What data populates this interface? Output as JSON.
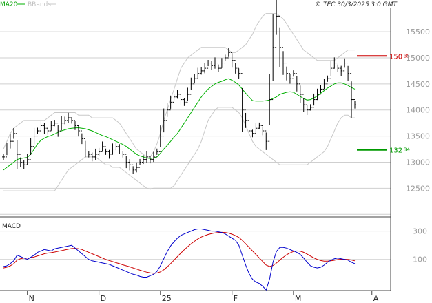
{
  "header": {
    "legend_ma": "MA20",
    "legend_bbands": "BBands",
    "source": "© TEC 30/3/2025 3:0 GMT"
  },
  "macd_label": "MACD",
  "colors": {
    "price": "#000000",
    "ma20": "#00b000",
    "bbands": "#c8c8c8",
    "macd": "#0000cc",
    "signal": "#cc0000",
    "resistance": "#cc0000",
    "support": "#009900",
    "grid": "#cfcfcf"
  },
  "chart_data": [
    {
      "type": "candlestick",
      "title": "",
      "ylim": [
        11950,
        15950
      ],
      "y_ticks": [
        12500,
        13000,
        13500,
        14000,
        14500,
        15000,
        15500
      ],
      "y_tick_labels": [
        "12500",
        "13000",
        "13500",
        "14000",
        "14500",
        "15000",
        "15500"
      ],
      "x_tick_labels": [
        "N",
        "D",
        "25",
        "F",
        "M",
        "A"
      ],
      "x_tick_index": [
        7,
        28,
        46,
        67,
        85,
        108
      ],
      "levels": [
        {
          "name": "resistance",
          "value": 15035,
          "int": "150",
          "dec": "35"
        },
        {
          "name": "support",
          "value": 13234,
          "int": "132",
          "dec": "34"
        }
      ],
      "price": [
        13100,
        13250,
        13400,
        13550,
        13150,
        13000,
        12950,
        13050,
        13300,
        13500,
        13600,
        13700,
        13650,
        13600,
        13700,
        13750,
        13600,
        13750,
        13800,
        13850,
        13800,
        13700,
        13600,
        13450,
        13250,
        13150,
        13100,
        13150,
        13200,
        13300,
        13200,
        13150,
        13250,
        13300,
        13250,
        13150,
        13000,
        12950,
        12850,
        12900,
        13000,
        13050,
        13100,
        13050,
        13100,
        13200,
        13500,
        13800,
        14000,
        14150,
        14250,
        14300,
        14200,
        14150,
        14300,
        14500,
        14600,
        14700,
        14750,
        14800,
        14900,
        14850,
        14900,
        14800,
        14900,
        15000,
        15100,
        14950,
        14800,
        14700,
        14000,
        13800,
        13600,
        13550,
        13650,
        13700,
        13600,
        13400,
        14200,
        15200,
        15800,
        15200,
        14900,
        14700,
        14600,
        14700,
        14500,
        14300,
        14100,
        14000,
        14050,
        14200,
        14300,
        14400,
        14500,
        14600,
        14800,
        14900,
        14800,
        14750,
        14900,
        14700,
        14200,
        14100
      ],
      "ma20": [
        12850,
        12900,
        12950,
        13000,
        13050,
        13070,
        13080,
        13090,
        13150,
        13250,
        13350,
        13420,
        13460,
        13490,
        13510,
        13540,
        13570,
        13600,
        13620,
        13640,
        13650,
        13655,
        13660,
        13650,
        13640,
        13620,
        13600,
        13570,
        13540,
        13510,
        13490,
        13460,
        13430,
        13400,
        13370,
        13340,
        13300,
        13250,
        13200,
        13150,
        13120,
        13100,
        13080,
        13070,
        13080,
        13100,
        13170,
        13250,
        13320,
        13400,
        13480,
        13550,
        13650,
        13750,
        13850,
        13950,
        14050,
        14150,
        14250,
        14330,
        14400,
        14450,
        14500,
        14530,
        14550,
        14580,
        14600,
        14570,
        14530,
        14480,
        14400,
        14320,
        14250,
        14180,
        14170,
        14170,
        14170,
        14180,
        14190,
        14220,
        14250,
        14300,
        14320,
        14340,
        14350,
        14340,
        14300,
        14260,
        14220,
        14190,
        14200,
        14230,
        14270,
        14320,
        14370,
        14420,
        14460,
        14500,
        14520,
        14520,
        14500,
        14470,
        14430,
        14400
      ],
      "bb_upper": [
        13250,
        13400,
        13550,
        13650,
        13700,
        13750,
        13800,
        13800,
        13800,
        13800,
        13800,
        13800,
        13800,
        13850,
        13900,
        13950,
        13950,
        13950,
        13950,
        13950,
        13950,
        13950,
        13900,
        13900,
        13900,
        13900,
        13850,
        13850,
        13850,
        13850,
        13850,
        13850,
        13850,
        13800,
        13750,
        13650,
        13550,
        13450,
        13350,
        13250,
        13200,
        13150,
        13100,
        13100,
        13200,
        13350,
        13550,
        13800,
        14000,
        14200,
        14400,
        14600,
        14800,
        14900,
        15000,
        15050,
        15100,
        15150,
        15200,
        15200,
        15200,
        15200,
        15200,
        15200,
        15200,
        15200,
        15150,
        15100,
        15100,
        15150,
        15200,
        15250,
        15350,
        15450,
        15600,
        15700,
        15800,
        15850,
        15850,
        15850,
        15850,
        15800,
        15750,
        15650,
        15550,
        15450,
        15350,
        15250,
        15150,
        15100,
        15050,
        15000,
        14950,
        14950,
        14950,
        14950,
        14950,
        14950,
        15000,
        15050,
        15100,
        15150,
        15150,
        15150
      ],
      "bb_lower": [
        12450,
        12450,
        12450,
        12450,
        12450,
        12450,
        12450,
        12450,
        12450,
        12450,
        12450,
        12450,
        12450,
        12450,
        12450,
        12450,
        12550,
        12650,
        12750,
        12850,
        12900,
        12950,
        13000,
        13050,
        13100,
        13100,
        13100,
        13100,
        13050,
        13000,
        12950,
        12950,
        12900,
        12900,
        12900,
        12850,
        12800,
        12750,
        12700,
        12650,
        12600,
        12550,
        12500,
        12480,
        12500,
        12500,
        12500,
        12500,
        12500,
        12500,
        12550,
        12650,
        12750,
        12850,
        12950,
        13050,
        13150,
        13250,
        13400,
        13600,
        13800,
        13900,
        14000,
        14050,
        14050,
        14050,
        14050,
        14050,
        14000,
        13950,
        13850,
        13700,
        13550,
        13400,
        13300,
        13250,
        13200,
        13150,
        13100,
        13050,
        13000,
        12950,
        12950,
        12950,
        12950,
        12950,
        12950,
        12950,
        12950,
        12950,
        13000,
        13050,
        13100,
        13150,
        13200,
        13300,
        13450,
        13600,
        13750,
        13850,
        13900,
        13900,
        13850,
        13850
      ]
    },
    {
      "type": "line",
      "title": "MACD",
      "ylim": [
        -120,
        400
      ],
      "y_ticks": [
        100,
        300
      ],
      "y_tick_labels": [
        "100",
        "300"
      ],
      "series": [
        {
          "name": "macd",
          "values": [
            50,
            55,
            70,
            90,
            130,
            120,
            110,
            100,
            115,
            130,
            150,
            160,
            170,
            165,
            160,
            175,
            180,
            185,
            190,
            195,
            200,
            180,
            160,
            140,
            120,
            100,
            90,
            85,
            80,
            75,
            70,
            65,
            55,
            45,
            35,
            25,
            15,
            5,
            -5,
            -10,
            -20,
            -25,
            -25,
            -15,
            -5,
            15,
            55,
            105,
            155,
            195,
            225,
            250,
            270,
            280,
            290,
            300,
            310,
            315,
            315,
            310,
            305,
            300,
            300,
            295,
            290,
            280,
            265,
            250,
            235,
            200,
            130,
            60,
            0,
            -40,
            -60,
            -70,
            -90,
            -115,
            -40,
            80,
            155,
            185,
            185,
            180,
            170,
            160,
            150,
            135,
            110,
            80,
            55,
            45,
            40,
            45,
            60,
            80,
            95,
            105,
            110,
            105,
            100,
            95,
            80,
            70
          ]
        },
        {
          "name": "signal",
          "values": [
            40,
            45,
            55,
            70,
            95,
            105,
            110,
            110,
            112,
            117,
            125,
            132,
            140,
            145,
            148,
            152,
            157,
            162,
            167,
            172,
            177,
            178,
            176,
            170,
            160,
            150,
            140,
            130,
            120,
            110,
            100,
            92,
            85,
            77,
            70,
            62,
            55,
            48,
            40,
            32,
            24,
            17,
            10,
            5,
            2,
            4,
            12,
            27,
            47,
            70,
            95,
            120,
            145,
            168,
            190,
            210,
            228,
            245,
            258,
            268,
            276,
            282,
            287,
            290,
            291,
            290,
            286,
            278,
            268,
            255,
            235,
            210,
            185,
            160,
            135,
            110,
            85,
            60,
            50,
            57,
            74,
            95,
            115,
            133,
            146,
            156,
            160,
            158,
            150,
            138,
            124,
            111,
            100,
            92,
            88,
            88,
            90,
            94,
            99,
            101,
            101,
            100,
            96,
            90
          ]
        }
      ]
    }
  ]
}
